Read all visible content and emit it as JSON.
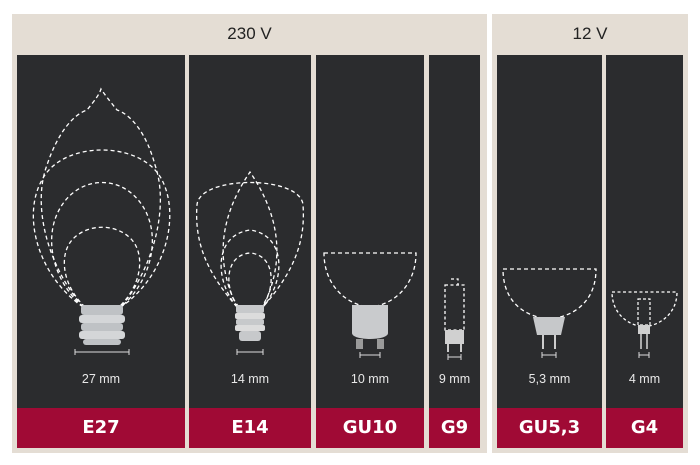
{
  "colors": {
    "background": "#e4ddd4",
    "panel": "#2b2c2e",
    "label_bar": "#a00a35",
    "outline": "#ffffff"
  },
  "groups": [
    {
      "title": "230 V",
      "sockets": [
        {
          "name": "E27",
          "size": "27 mm"
        },
        {
          "name": "E14",
          "size": "14 mm"
        },
        {
          "name": "GU10",
          "size": "10 mm"
        },
        {
          "name": "G9",
          "size": "9 mm"
        }
      ]
    },
    {
      "title": "12 V",
      "sockets": [
        {
          "name": "GU5,3",
          "size": "5,3 mm"
        },
        {
          "name": "G4",
          "size": "4 mm"
        }
      ]
    }
  ]
}
